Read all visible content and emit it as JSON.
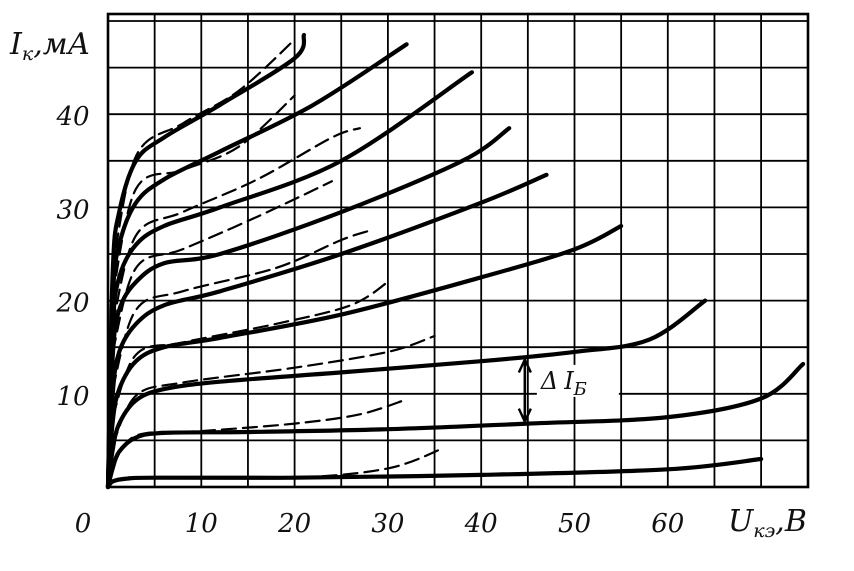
{
  "chart_data": {
    "type": "line",
    "title": "",
    "xlabel": "U",
    "xlabel_sub": "кэ",
    "xlabel_unit": ",В",
    "ylabel": "I",
    "ylabel_sub": "к",
    "ylabel_unit": ",мА",
    "xlim": [
      0,
      75
    ],
    "ylim": [
      0,
      51
    ],
    "grid": true,
    "x_ticks": [
      {
        "value": 0,
        "label": "0"
      },
      {
        "value": 10,
        "label": "10"
      },
      {
        "value": 20,
        "label": "20"
      },
      {
        "value": 30,
        "label": "30"
      },
      {
        "value": 40,
        "label": "40"
      },
      {
        "value": 50,
        "label": "50"
      },
      {
        "value": 60,
        "label": "60"
      }
    ],
    "y_ticks": [
      {
        "value": 10,
        "label": "10"
      },
      {
        "value": 20,
        "label": "20"
      },
      {
        "value": 30,
        "label": "30"
      },
      {
        "value": 40,
        "label": "40"
      }
    ],
    "annotation": {
      "label": "Δ",
      "sym": "I",
      "sub": "Б",
      "x": 45,
      "y_low": 6.8,
      "y_high": 13.9
    },
    "series": [
      {
        "style": "solid",
        "points": [
          [
            0,
            0
          ],
          [
            0.5,
            0.6
          ],
          [
            2,
            0.9
          ],
          [
            5,
            1
          ],
          [
            20,
            1
          ],
          [
            40,
            1.3
          ],
          [
            60,
            1.9
          ],
          [
            70,
            3
          ]
        ]
      },
      {
        "style": "solid",
        "points": [
          [
            0,
            0
          ],
          [
            0.5,
            2
          ],
          [
            1.2,
            3.8
          ],
          [
            3,
            5.3
          ],
          [
            6,
            5.8
          ],
          [
            15,
            5.9
          ],
          [
            30,
            6.2
          ],
          [
            45,
            6.8
          ],
          [
            60,
            7.5
          ],
          [
            70,
            9.5
          ],
          [
            74.5,
            13.2
          ]
        ]
      },
      {
        "style": "solid",
        "points": [
          [
            0,
            0
          ],
          [
            0.5,
            4
          ],
          [
            1.2,
            6.8
          ],
          [
            3,
            9.3
          ],
          [
            6,
            10.5
          ],
          [
            12,
            11.3
          ],
          [
            25,
            12.3
          ],
          [
            40,
            13.5
          ],
          [
            50,
            14.5
          ],
          [
            58,
            15.8
          ],
          [
            64,
            20
          ]
        ]
      },
      {
        "style": "solid",
        "points": [
          [
            0,
            0
          ],
          [
            0.5,
            7
          ],
          [
            1.2,
            10.5
          ],
          [
            3,
            13.5
          ],
          [
            6,
            15
          ],
          [
            12,
            16
          ],
          [
            25,
            18.5
          ],
          [
            40,
            22.5
          ],
          [
            50,
            25.5
          ],
          [
            55,
            28
          ]
        ]
      },
      {
        "style": "solid",
        "points": [
          [
            0,
            0
          ],
          [
            0.5,
            10
          ],
          [
            1.2,
            14.5
          ],
          [
            3,
            17.5
          ],
          [
            6,
            19.5
          ],
          [
            12,
            21
          ],
          [
            25,
            25
          ],
          [
            40,
            30.5
          ],
          [
            47,
            33.5
          ]
        ]
      },
      {
        "style": "solid",
        "points": [
          [
            0,
            0
          ],
          [
            0.5,
            14
          ],
          [
            1.2,
            19
          ],
          [
            3,
            22
          ],
          [
            6,
            24
          ],
          [
            12,
            25
          ],
          [
            25,
            29.5
          ],
          [
            38,
            35
          ],
          [
            43,
            38.5
          ]
        ]
      },
      {
        "style": "solid",
        "points": [
          [
            0,
            0
          ],
          [
            0.5,
            17
          ],
          [
            1.2,
            22.5
          ],
          [
            3,
            26
          ],
          [
            6,
            28
          ],
          [
            12,
            30
          ],
          [
            25,
            35
          ],
          [
            39,
            44.5
          ]
        ]
      },
      {
        "style": "solid",
        "points": [
          [
            0,
            0
          ],
          [
            0.5,
            20
          ],
          [
            1.2,
            26
          ],
          [
            3,
            30.5
          ],
          [
            6,
            33
          ],
          [
            12,
            36
          ],
          [
            22,
            41
          ],
          [
            32,
            47.5
          ]
        ]
      },
      {
        "style": "solid",
        "points": [
          [
            0,
            0
          ],
          [
            0.5,
            23
          ],
          [
            1.2,
            29.5
          ],
          [
            3,
            35
          ],
          [
            6,
            37.5
          ],
          [
            12,
            41
          ],
          [
            20,
            46
          ],
          [
            21,
            48.5
          ]
        ]
      },
      {
        "style": "dashed",
        "points": [
          [
            0.5,
            0.7
          ],
          [
            5,
            1
          ],
          [
            20,
            1
          ],
          [
            30,
            2
          ],
          [
            36,
            4.2
          ]
        ]
      },
      {
        "style": "dashed",
        "points": [
          [
            0.5,
            2.2
          ],
          [
            3,
            5.5
          ],
          [
            10,
            6
          ],
          [
            20,
            6.8
          ],
          [
            27,
            7.8
          ],
          [
            32,
            9.4
          ]
        ]
      },
      {
        "style": "dashed",
        "points": [
          [
            0.5,
            4.5
          ],
          [
            3,
            9.8
          ],
          [
            8,
            11.2
          ],
          [
            20,
            12.8
          ],
          [
            30,
            14.5
          ],
          [
            35,
            16.2
          ]
        ]
      },
      {
        "style": "dashed",
        "points": [
          [
            0.5,
            7.5
          ],
          [
            3,
            14.2
          ],
          [
            8,
            15.5
          ],
          [
            18,
            17.5
          ],
          [
            26,
            19.5
          ],
          [
            30,
            22
          ]
        ]
      },
      {
        "style": "dashed",
        "points": [
          [
            0.5,
            10.5
          ],
          [
            3,
            19
          ],
          [
            8,
            21
          ],
          [
            18,
            23.5
          ],
          [
            25,
            26.5
          ],
          [
            28,
            27.5
          ]
        ]
      },
      {
        "style": "dashed",
        "points": [
          [
            0.5,
            14.5
          ],
          [
            3,
            23.5
          ],
          [
            8,
            25.5
          ],
          [
            16,
            29
          ],
          [
            24,
            32.8
          ]
        ]
      },
      {
        "style": "dashed",
        "points": [
          [
            0.5,
            17.5
          ],
          [
            3,
            27
          ],
          [
            8,
            29.5
          ],
          [
            16,
            33
          ],
          [
            24,
            37.5
          ],
          [
            27,
            38.5
          ]
        ]
      },
      {
        "style": "dashed",
        "points": [
          [
            0.5,
            20.5
          ],
          [
            3,
            32
          ],
          [
            8,
            34
          ],
          [
            14,
            36.5
          ],
          [
            20,
            42
          ]
        ]
      },
      {
        "style": "dashed",
        "points": [
          [
            0.5,
            23.5
          ],
          [
            3,
            35.5
          ],
          [
            8,
            39
          ],
          [
            14,
            42.5
          ],
          [
            20,
            48
          ]
        ]
      }
    ]
  }
}
